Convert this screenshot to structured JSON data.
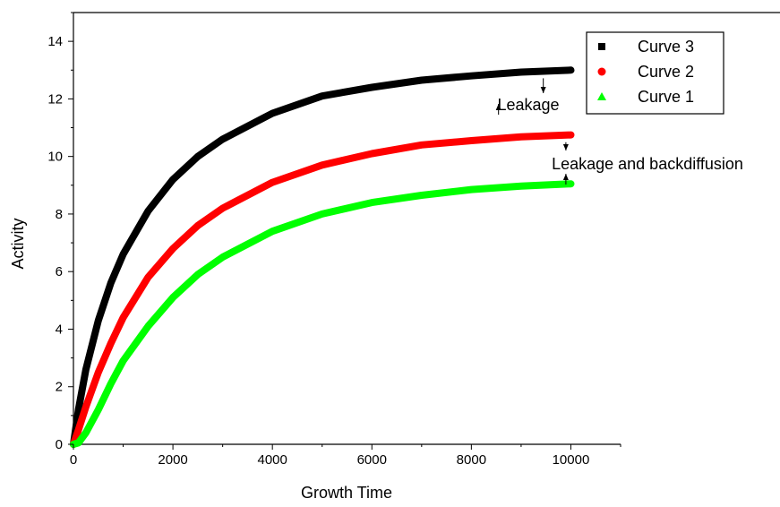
{
  "chart_data": {
    "type": "line",
    "title": "",
    "xlabel": "Growth Time",
    "ylabel": "Activity",
    "xlim": [
      0,
      11000
    ],
    "ylim": [
      0,
      15
    ],
    "xticks": [
      0,
      2000,
      4000,
      6000,
      8000,
      10000
    ],
    "yticks": [
      0,
      2,
      4,
      6,
      8,
      10,
      12,
      14
    ],
    "x_tick_labels": [
      "0",
      "2000",
      "4000",
      "6000",
      "8000",
      "10000"
    ],
    "y_tick_labels": [
      "0",
      "2",
      "4",
      "6",
      "8",
      "10",
      "12",
      "14"
    ],
    "grid": false,
    "legend_position": "top-right",
    "x": [
      0,
      100,
      250,
      500,
      750,
      1000,
      1500,
      2000,
      2500,
      3000,
      4000,
      5000,
      6000,
      7000,
      8000,
      9000,
      10000
    ],
    "series": [
      {
        "name": "Curve 3",
        "color": "#000000",
        "marker": "square",
        "values": [
          0.0,
          1.2,
          2.6,
          4.3,
          5.6,
          6.6,
          8.1,
          9.2,
          10.0,
          10.6,
          11.5,
          12.1,
          12.4,
          12.65,
          12.8,
          12.93,
          13.0
        ]
      },
      {
        "name": "Curve 2",
        "color": "#ff0000",
        "marker": "circle",
        "values": [
          0.0,
          0.5,
          1.3,
          2.5,
          3.5,
          4.4,
          5.8,
          6.8,
          7.6,
          8.2,
          9.1,
          9.7,
          10.1,
          10.4,
          10.55,
          10.68,
          10.75
        ]
      },
      {
        "name": "Curve 1",
        "color": "#00ff00",
        "marker": "triangle",
        "values": [
          0.0,
          0.05,
          0.4,
          1.2,
          2.1,
          2.9,
          4.1,
          5.1,
          5.9,
          6.5,
          7.4,
          8.0,
          8.4,
          8.65,
          8.85,
          8.97,
          9.05
        ]
      }
    ],
    "annotations": [
      {
        "text": "Leakage",
        "between": [
          "Curve 3",
          "Curve 2"
        ],
        "at_x": 9500
      },
      {
        "text": "Leakage and backdiffusion",
        "between": [
          "Curve 2",
          "Curve 1"
        ],
        "at_x": 9900
      }
    ]
  }
}
